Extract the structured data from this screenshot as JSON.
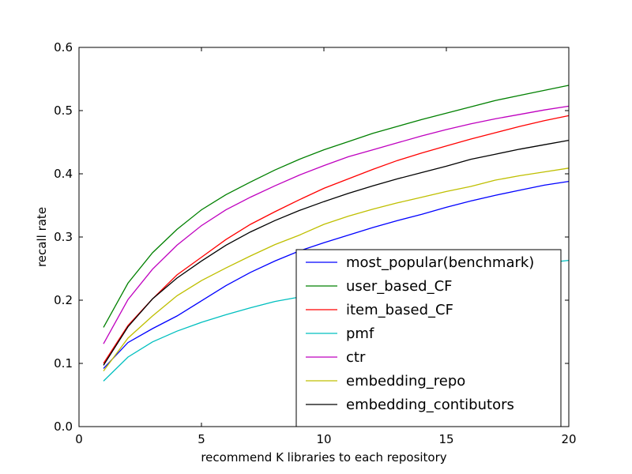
{
  "chart_data": {
    "type": "line",
    "title": "",
    "xlabel": "recommend K libraries to each repository",
    "ylabel": "recall rate",
    "xlim": [
      0,
      20
    ],
    "ylim": [
      0.0,
      0.6
    ],
    "xticks": [
      "0",
      "5",
      "10",
      "15",
      "20"
    ],
    "yticks": [
      "0.0",
      "0.1",
      "0.2",
      "0.3",
      "0.4",
      "0.5",
      "0.6"
    ],
    "grid": false,
    "legend_position": "lower-right",
    "x": [
      1,
      2,
      3,
      4,
      5,
      6,
      7,
      8,
      9,
      10,
      11,
      12,
      13,
      14,
      15,
      16,
      17,
      18,
      19,
      20
    ],
    "series": [
      {
        "name": "most_popular(benchmark)",
        "color": "#0000ff",
        "values": [
          0.092,
          0.133,
          0.155,
          0.175,
          0.199,
          0.223,
          0.244,
          0.262,
          0.278,
          0.291,
          0.303,
          0.315,
          0.326,
          0.336,
          0.347,
          0.357,
          0.366,
          0.374,
          0.382,
          0.388
        ]
      },
      {
        "name": "user_based_CF",
        "color": "#008000",
        "values": [
          0.157,
          0.227,
          0.275,
          0.312,
          0.343,
          0.367,
          0.387,
          0.406,
          0.423,
          0.438,
          0.451,
          0.464,
          0.475,
          0.486,
          0.496,
          0.506,
          0.516,
          0.524,
          0.532,
          0.54
        ]
      },
      {
        "name": "item_based_CF",
        "color": "#ff0000",
        "values": [
          0.1,
          0.16,
          0.202,
          0.24,
          0.268,
          0.296,
          0.32,
          0.34,
          0.359,
          0.377,
          0.392,
          0.407,
          0.421,
          0.433,
          0.444,
          0.455,
          0.465,
          0.475,
          0.484,
          0.492
        ]
      },
      {
        "name": "pmf",
        "color": "#00bfbf",
        "values": [
          0.072,
          0.11,
          0.134,
          0.151,
          0.165,
          0.177,
          0.188,
          0.198,
          0.205,
          0.212,
          0.218,
          0.224,
          0.23,
          0.236,
          0.241,
          0.246,
          0.251,
          0.255,
          0.259,
          0.263
        ]
      },
      {
        "name": "ctr",
        "color": "#bf00bf",
        "values": [
          0.131,
          0.201,
          0.249,
          0.287,
          0.318,
          0.343,
          0.363,
          0.381,
          0.398,
          0.413,
          0.427,
          0.438,
          0.449,
          0.46,
          0.47,
          0.479,
          0.487,
          0.494,
          0.501,
          0.507
        ]
      },
      {
        "name": "embedding_repo",
        "color": "#bfbf00",
        "values": [
          0.088,
          0.14,
          0.175,
          0.207,
          0.231,
          0.251,
          0.27,
          0.288,
          0.303,
          0.32,
          0.333,
          0.344,
          0.354,
          0.363,
          0.372,
          0.38,
          0.39,
          0.397,
          0.403,
          0.409
        ]
      },
      {
        "name": "embedding_contibutors",
        "color": "#000000",
        "values": [
          0.097,
          0.158,
          0.202,
          0.235,
          0.262,
          0.287,
          0.308,
          0.326,
          0.342,
          0.356,
          0.369,
          0.381,
          0.392,
          0.402,
          0.412,
          0.423,
          0.431,
          0.439,
          0.446,
          0.453
        ]
      }
    ]
  }
}
